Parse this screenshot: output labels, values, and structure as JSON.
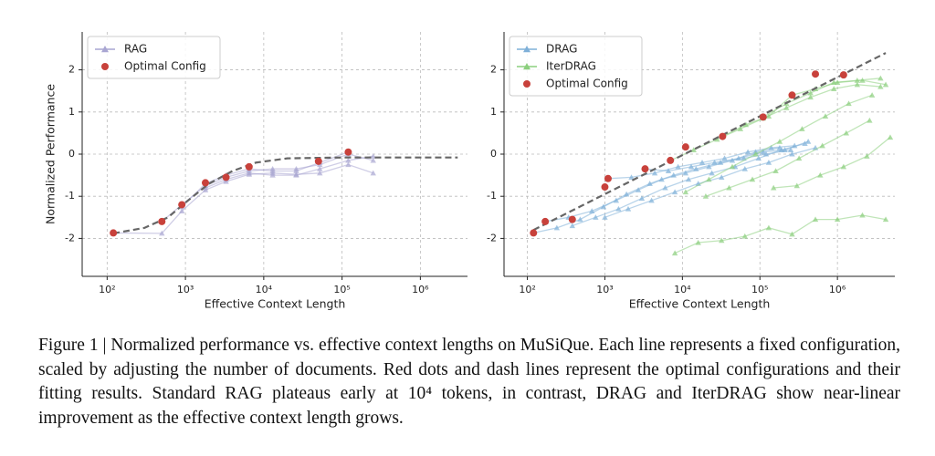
{
  "chart_data": [
    {
      "type": "line",
      "xlabel": "Effective Context Length",
      "ylabel": "Normalized Performance",
      "xlog": true,
      "grid": true,
      "legend": "upper left",
      "xlim": [
        48,
        4000000
      ],
      "xticks": [
        {
          "value": 100,
          "label": "10²"
        },
        {
          "value": 1000,
          "label": "10³"
        },
        {
          "value": 10000,
          "label": "10⁴"
        },
        {
          "value": 100000,
          "label": "10⁵"
        },
        {
          "value": 1000000,
          "label": "10⁶"
        }
      ],
      "ylim": [
        -2.9,
        2.9
      ],
      "yticks": [
        -2,
        -1,
        0,
        1,
        2
      ],
      "series": [
        {
          "name": "RAG",
          "color": "#a9a6d2",
          "marker": "triangle",
          "lines": [
            {
              "x": [
                120,
                500,
                900,
                1800,
                3300,
                6500,
                13000,
                26000,
                52000,
                120000,
                250000
              ],
              "values": [
                -1.87,
                -1.88,
                -1.35,
                -0.85,
                -0.65,
                -0.48,
                -0.45,
                -0.48,
                -0.45,
                -0.25,
                -0.45
              ]
            },
            {
              "x": [
                500,
                900,
                1800,
                3300,
                6500,
                13000,
                26000,
                52000,
                120000,
                250000
              ],
              "values": [
                -1.6,
                -1.2,
                -0.75,
                -0.55,
                -0.4,
                -0.35,
                -0.35,
                -0.25,
                0.0,
                -0.15
              ]
            },
            {
              "x": [
                900,
                1800,
                3300,
                6500,
                13000,
                26000,
                52000,
                120000
              ],
              "values": [
                -1.25,
                -0.7,
                -0.5,
                -0.35,
                -0.4,
                -0.4,
                -0.2,
                0.05
              ]
            },
            {
              "x": [
                1800,
                3300,
                6500,
                13000,
                26000,
                52000,
                120000,
                250000
              ],
              "values": [
                -0.8,
                -0.6,
                -0.45,
                -0.5,
                -0.5,
                -0.35,
                -0.15,
                -0.05
              ]
            }
          ]
        },
        {
          "name": "Optimal Config",
          "color": "#c8413b",
          "marker": "circle",
          "x": [
            120,
            500,
            900,
            1800,
            3300,
            6500,
            50000,
            120000
          ],
          "values": [
            -1.87,
            -1.6,
            -1.2,
            -0.68,
            -0.55,
            -0.3,
            -0.17,
            0.05
          ]
        }
      ],
      "fit": {
        "color": "#666666",
        "x": [
          120,
          300,
          600,
          1000,
          2000,
          4000,
          8000,
          20000,
          100000,
          3000000
        ],
        "values": [
          -1.88,
          -1.75,
          -1.5,
          -1.15,
          -0.7,
          -0.4,
          -0.2,
          -0.1,
          -0.08,
          -0.08
        ]
      }
    },
    {
      "type": "line",
      "xlabel": "Effective Context Length",
      "xlog": true,
      "grid": true,
      "legend": "upper left",
      "xlim": [
        50,
        5500000
      ],
      "xticks": [
        {
          "value": 100,
          "label": "10²"
        },
        {
          "value": 1000,
          "label": "10³"
        },
        {
          "value": 10000,
          "label": "10⁴"
        },
        {
          "value": 100000,
          "label": "10⁵"
        },
        {
          "value": 1000000,
          "label": "10⁶"
        }
      ],
      "ylim": [
        -2.9,
        2.9
      ],
      "yticks": [
        -2,
        -1,
        0,
        1,
        2
      ],
      "series": [
        {
          "name": "DRAG",
          "color": "#7fb0d8",
          "marker": "triangle",
          "lines": [
            {
              "x": [
                120,
                240,
                480,
                960,
                1900,
                3800,
                7700,
                15000,
                31000,
                62000,
                120000,
                250000
              ],
              "values": [
                -1.87,
                -1.75,
                -1.55,
                -1.25,
                -0.95,
                -0.7,
                -0.5,
                -0.35,
                -0.2,
                -0.1,
                0.0,
                0.1
              ]
            },
            {
              "x": [
                170,
                340,
                680,
                1400,
                2700,
                5400,
                11000,
                22000,
                44000,
                88000,
                180000
              ],
              "values": [
                -1.6,
                -1.5,
                -1.35,
                -1.1,
                -0.85,
                -0.6,
                -0.45,
                -0.3,
                -0.15,
                0.05,
                0.15
              ]
            },
            {
              "x": [
                380,
                760,
                1500,
                3000,
                6000,
                12000,
                24000,
                48000,
                96000,
                190000,
                380000
              ],
              "values": [
                -1.7,
                -1.5,
                -1.3,
                -1.05,
                -0.8,
                -0.6,
                -0.45,
                -0.3,
                -0.1,
                0.1,
                0.25
              ]
            },
            {
              "x": [
                1000,
                2000,
                4000,
                8000,
                16000,
                32000,
                64000,
                130000,
                260000,
                520000
              ],
              "values": [
                -1.5,
                -1.3,
                -1.1,
                -0.9,
                -0.7,
                -0.55,
                -0.35,
                -0.2,
                0.0,
                0.15
              ]
            },
            {
              "x": [
                1100,
                2200,
                4400,
                8800,
                18000,
                35000,
                70000,
                140000,
                280000
              ],
              "values": [
                -0.58,
                -0.55,
                -0.45,
                -0.3,
                -0.2,
                -0.1,
                0.05,
                0.15,
                0.2
              ]
            },
            {
              "x": [
                3300,
                6600,
                13000,
                26000,
                53000,
                110000,
                210000,
                420000
              ],
              "values": [
                -0.35,
                -0.4,
                -0.3,
                -0.2,
                -0.1,
                0.05,
                0.1,
                0.3
              ]
            }
          ]
        },
        {
          "name": "IterDRAG",
          "color": "#8ccf7e",
          "marker": "triangle",
          "lines": [
            {
              "x": [
                7000,
                14000,
                28000,
                56000,
                110000,
                220000,
                450000,
                900000,
                1800000,
                3600000
              ],
              "values": [
                -0.15,
                0.1,
                0.35,
                0.6,
                0.85,
                1.1,
                1.35,
                1.55,
                1.65,
                1.6
              ]
            },
            {
              "x": [
                33000,
                66000,
                130000,
                260000,
                520000,
                1000000,
                2100000,
                4200000
              ],
              "values": [
                0.42,
                0.7,
                0.9,
                1.4,
                1.55,
                1.7,
                1.75,
                1.65
              ]
            },
            {
              "x": [
                11000,
                22000,
                44000,
                88000,
                180000,
                350000,
                700000,
                1400000,
                2800000
              ],
              "values": [
                -0.9,
                -0.6,
                -0.3,
                0.0,
                0.3,
                0.6,
                0.9,
                1.2,
                1.4
              ]
            },
            {
              "x": [
                20000,
                40000,
                80000,
                160000,
                320000,
                640000,
                1300000,
                2600000
              ],
              "values": [
                -1.0,
                -0.8,
                -0.6,
                -0.4,
                -0.1,
                0.2,
                0.5,
                0.8
              ]
            },
            {
              "x": [
                110000,
                220000,
                450000,
                900000,
                1800000,
                3600000
              ],
              "values": [
                0.88,
                1.2,
                1.45,
                1.7,
                1.75,
                1.8
              ]
            },
            {
              "x": [
                8000,
                16000,
                32000,
                64000,
                130000,
                260000,
                520000,
                1000000,
                2100000,
                4200000
              ],
              "values": [
                -2.35,
                -2.1,
                -2.05,
                -1.95,
                -1.75,
                -1.9,
                -1.55,
                -1.55,
                -1.45,
                -1.55
              ]
            },
            {
              "x": [
                150000,
                300000,
                600000,
                1200000,
                2400000,
                4800000
              ],
              "values": [
                -0.8,
                -0.75,
                -0.5,
                -0.3,
                -0.05,
                0.4
              ]
            }
          ]
        },
        {
          "name": "Optimal Config",
          "color": "#c8413b",
          "marker": "circle",
          "x": [
            120,
            170,
            380,
            1000,
            1100,
            3300,
            7000,
            11000,
            33000,
            110000,
            260000,
            520000,
            1200000
          ],
          "values": [
            -1.87,
            -1.6,
            -1.55,
            -0.78,
            -0.58,
            -0.35,
            -0.15,
            0.17,
            0.42,
            0.88,
            1.4,
            1.9,
            1.88
          ]
        }
      ],
      "fit": {
        "color": "#666666",
        "x": [
          120,
          4200000
        ],
        "values": [
          -1.8,
          2.4
        ]
      }
    }
  ],
  "caption": "Figure 1 | Normalized performance vs. effective context lengths on MuSiQue. Each line represents a fixed configuration, scaled by adjusting the number of documents. Red dots and dash lines represent the optimal configurations and their fitting results. Standard RAG plateaus early at 10⁴ tokens, in contrast, DRAG and IterDRAG show near-linear improvement as the effective context length grows."
}
